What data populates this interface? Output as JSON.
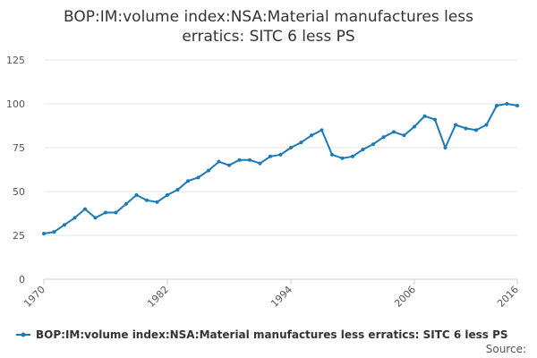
{
  "chart_data": {
    "type": "line",
    "title": "BOP:IM:volume index:NSA:Material manufactures less erratics: SITC 6 less PS",
    "title_lines": [
      "BOP:IM:volume index:NSA:Material manufactures less",
      "erratics: SITC 6 less PS"
    ],
    "xlabel": "",
    "ylabel": "",
    "ylim": [
      0,
      125
    ],
    "xlim": [
      1970,
      2016
    ],
    "y_ticks": [
      0,
      25,
      50,
      75,
      100,
      125
    ],
    "x_ticks": [
      1970,
      1982,
      1994,
      2006,
      2016
    ],
    "grid": true,
    "legend_position": "bottom",
    "series": [
      {
        "name": "BOP:IM:volume index:NSA:Material manufactures less erratics: SITC 6 less PS",
        "color": "#1a7ab8",
        "x": [
          1970,
          1971,
          1972,
          1973,
          1974,
          1975,
          1976,
          1977,
          1978,
          1979,
          1980,
          1981,
          1982,
          1983,
          1984,
          1985,
          1986,
          1987,
          1988,
          1989,
          1990,
          1991,
          1992,
          1993,
          1994,
          1995,
          1996,
          1997,
          1998,
          1999,
          2000,
          2001,
          2002,
          2003,
          2004,
          2005,
          2006,
          2007,
          2008,
          2009,
          2010,
          2011,
          2012,
          2013,
          2014,
          2015,
          2016
        ],
        "values": [
          26,
          27,
          31,
          35,
          40,
          35,
          38,
          38,
          43,
          48,
          45,
          44,
          48,
          51,
          56,
          58,
          62,
          67,
          65,
          68,
          68,
          66,
          70,
          71,
          75,
          78,
          82,
          85,
          71,
          69,
          70,
          74,
          77,
          81,
          84,
          82,
          87,
          93,
          91,
          75,
          88,
          86,
          85,
          88,
          99,
          100,
          99
        ]
      }
    ]
  },
  "source_label": "Source:"
}
